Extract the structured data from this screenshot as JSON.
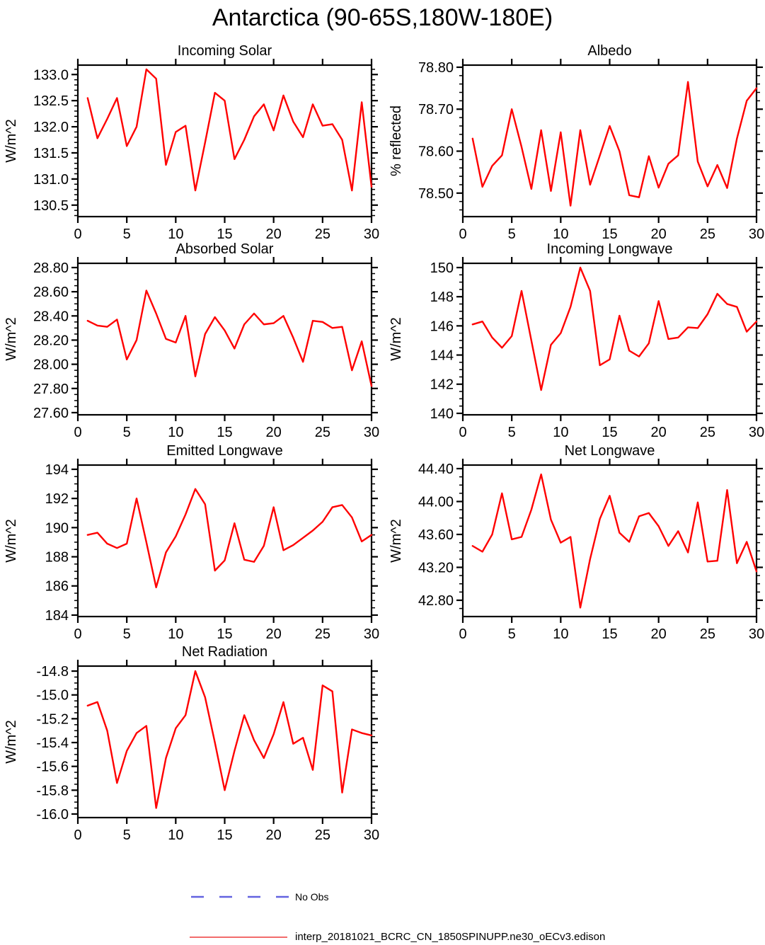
{
  "header": {
    "title": "Antarctica (90-65S,180W-180E)"
  },
  "legend": {
    "no_obs": {
      "label": "No Obs",
      "color": "#6262E0",
      "style": "dashed"
    },
    "series": {
      "label": "interp_20181021_BCRC_CN_1850SPINUPP.ne30_oECv3.edison",
      "color": "#EE3B3B",
      "style": "solid"
    }
  },
  "chart_data": [
    {
      "id": "incoming-solar",
      "type": "line",
      "title": "Incoming Solar",
      "ylabel": "W/m^2",
      "line_color": "#FF0000",
      "grid": false,
      "xlim": [
        0,
        30
      ],
      "xticks": [
        0,
        5,
        10,
        15,
        20,
        25,
        30
      ],
      "xtick_labels": [
        "0",
        "5",
        "10",
        "15",
        "20",
        "25",
        "30"
      ],
      "ylim": [
        130.28,
        133.18
      ],
      "ytick_values": [
        130.5,
        131.0,
        131.5,
        132.0,
        132.5,
        133.0
      ],
      "ytick_labels": [
        "130.5",
        "131.0",
        "131.5",
        "132.0",
        "132.5",
        "133.0"
      ],
      "y_minor_step": 0.1,
      "x": [
        1,
        2,
        3,
        4,
        5,
        6,
        7,
        8,
        9,
        10,
        11,
        12,
        13,
        14,
        15,
        16,
        17,
        18,
        19,
        20,
        21,
        22,
        23,
        24,
        25,
        26,
        27,
        28,
        29,
        30
      ],
      "values": [
        132.55,
        131.78,
        132.15,
        132.55,
        131.63,
        132.0,
        133.1,
        132.92,
        131.27,
        131.9,
        132.02,
        130.78,
        131.7,
        132.65,
        132.5,
        131.38,
        131.75,
        132.2,
        132.43,
        131.93,
        132.6,
        132.1,
        131.8,
        132.43,
        132.02,
        132.05,
        131.75,
        130.78,
        132.47,
        130.85
      ]
    },
    {
      "id": "albedo",
      "type": "line",
      "title": "Albedo",
      "ylabel": "% reflected",
      "line_color": "#FF0000",
      "grid": false,
      "xlim": [
        0,
        30
      ],
      "xticks": [
        0,
        5,
        10,
        15,
        20,
        25,
        30
      ],
      "xtick_labels": [
        "0",
        "5",
        "10",
        "15",
        "20",
        "25",
        "30"
      ],
      "ylim": [
        78.444,
        78.805
      ],
      "ytick_values": [
        78.5,
        78.6,
        78.7,
        78.8
      ],
      "ytick_labels": [
        "78.50",
        "78.60",
        "78.70",
        "78.80"
      ],
      "y_minor_step": 0.02,
      "x": [
        1,
        2,
        3,
        4,
        5,
        6,
        7,
        8,
        9,
        10,
        11,
        12,
        13,
        14,
        15,
        16,
        17,
        18,
        19,
        20,
        21,
        22,
        23,
        24,
        25,
        26,
        27,
        28,
        29,
        30
      ],
      "values": [
        78.63,
        78.515,
        78.565,
        78.59,
        78.7,
        78.61,
        78.51,
        78.65,
        78.505,
        78.645,
        78.47,
        78.65,
        78.52,
        78.59,
        78.66,
        78.6,
        78.495,
        78.49,
        78.588,
        78.513,
        78.57,
        78.59,
        78.765,
        78.575,
        78.516,
        78.567,
        78.512,
        78.63,
        78.72,
        78.75
      ]
    },
    {
      "id": "absorbed-solar",
      "type": "line",
      "title": "Absorbed Solar",
      "ylabel": "W/m^2",
      "line_color": "#FF0000",
      "grid": false,
      "xlim": [
        0,
        30
      ],
      "xticks": [
        0,
        5,
        10,
        15,
        20,
        25,
        30
      ],
      "xtick_labels": [
        "0",
        "5",
        "10",
        "15",
        "20",
        "25",
        "30"
      ],
      "ylim": [
        27.582,
        28.835
      ],
      "ytick_values": [
        27.6,
        27.8,
        28.0,
        28.2,
        28.4,
        28.6,
        28.8
      ],
      "ytick_labels": [
        "27.60",
        "27.80",
        "28.00",
        "28.20",
        "28.40",
        "28.60",
        "28.80"
      ],
      "y_minor_step": 0.05,
      "x": [
        1,
        2,
        3,
        4,
        5,
        6,
        7,
        8,
        9,
        10,
        11,
        12,
        13,
        14,
        15,
        16,
        17,
        18,
        19,
        20,
        21,
        22,
        23,
        24,
        25,
        26,
        27,
        28,
        29,
        30
      ],
      "values": [
        28.36,
        28.32,
        28.31,
        28.37,
        28.04,
        28.2,
        28.61,
        28.42,
        28.21,
        28.18,
        28.4,
        27.9,
        28.25,
        28.39,
        28.28,
        28.13,
        28.33,
        28.42,
        28.33,
        28.34,
        28.4,
        28.22,
        28.02,
        28.36,
        28.35,
        28.3,
        28.31,
        27.95,
        28.19,
        27.82
      ]
    },
    {
      "id": "incoming-longwave",
      "type": "line",
      "title": "Incoming Longwave",
      "ylabel": "W/m^2",
      "line_color": "#FF0000",
      "grid": false,
      "xlim": [
        0,
        30
      ],
      "xticks": [
        0,
        5,
        10,
        15,
        20,
        25,
        30
      ],
      "xtick_labels": [
        "0",
        "5",
        "10",
        "15",
        "20",
        "25",
        "30"
      ],
      "ylim": [
        139.9,
        150.29
      ],
      "ytick_values": [
        140,
        142,
        144,
        146,
        148,
        150
      ],
      "ytick_labels": [
        "140",
        "142",
        "144",
        "146",
        "148",
        "150"
      ],
      "y_minor_step": 0.5,
      "x": [
        1,
        2,
        3,
        4,
        5,
        6,
        7,
        8,
        9,
        10,
        11,
        12,
        13,
        14,
        15,
        16,
        17,
        18,
        19,
        20,
        21,
        22,
        23,
        24,
        25,
        26,
        27,
        28,
        29,
        30
      ],
      "values": [
        146.1,
        146.3,
        145.2,
        144.5,
        145.3,
        148.4,
        145.0,
        141.6,
        144.7,
        145.5,
        147.3,
        150.0,
        148.4,
        143.3,
        143.7,
        146.7,
        144.3,
        143.9,
        144.8,
        147.7,
        145.1,
        145.2,
        145.9,
        145.85,
        146.8,
        148.2,
        147.5,
        147.3,
        145.6,
        146.3
      ]
    },
    {
      "id": "emitted-longwave",
      "type": "line",
      "title": "Emitted Longwave",
      "ylabel": "W/m^2",
      "line_color": "#FF0000",
      "grid": false,
      "xlim": [
        0,
        30
      ],
      "xticks": [
        0,
        5,
        10,
        15,
        20,
        25,
        30
      ],
      "xtick_labels": [
        "0",
        "5",
        "10",
        "15",
        "20",
        "25",
        "30"
      ],
      "ylim": [
        183.9,
        194.29
      ],
      "ytick_values": [
        184,
        186,
        188,
        190,
        192,
        194
      ],
      "ytick_labels": [
        "184",
        "186",
        "188",
        "190",
        "192",
        "194"
      ],
      "y_minor_step": 0.5,
      "x": [
        1,
        2,
        3,
        4,
        5,
        6,
        7,
        8,
        9,
        10,
        11,
        12,
        13,
        14,
        15,
        16,
        17,
        18,
        19,
        20,
        21,
        22,
        23,
        24,
        25,
        26,
        27,
        28,
        29,
        30
      ],
      "values": [
        189.5,
        189.65,
        188.9,
        188.6,
        188.9,
        192.0,
        189.0,
        185.9,
        188.3,
        189.4,
        190.9,
        192.65,
        191.6,
        187.05,
        187.75,
        190.3,
        187.8,
        187.65,
        188.75,
        191.4,
        188.45,
        188.8,
        189.3,
        189.8,
        190.4,
        191.4,
        191.55,
        190.7,
        189.05,
        189.5
      ]
    },
    {
      "id": "net-longwave",
      "type": "line",
      "title": "Net Longwave",
      "ylabel": "W/m^2",
      "line_color": "#FF0000",
      "grid": false,
      "xlim": [
        0,
        30
      ],
      "xticks": [
        0,
        5,
        10,
        15,
        20,
        25,
        30
      ],
      "xtick_labels": [
        "0",
        "5",
        "10",
        "15",
        "20",
        "25",
        "30"
      ],
      "ylim": [
        42.602,
        44.443
      ],
      "ytick_values": [
        42.8,
        43.2,
        43.6,
        44.0,
        44.4
      ],
      "ytick_labels": [
        "42.80",
        "43.20",
        "43.60",
        "44.00",
        "44.40"
      ],
      "y_minor_step": 0.1,
      "x": [
        1,
        2,
        3,
        4,
        5,
        6,
        7,
        8,
        9,
        10,
        11,
        12,
        13,
        14,
        15,
        16,
        17,
        18,
        19,
        20,
        21,
        22,
        23,
        24,
        25,
        26,
        27,
        28,
        29,
        30
      ],
      "values": [
        43.46,
        43.39,
        43.6,
        44.1,
        43.54,
        43.57,
        43.9,
        44.33,
        43.78,
        43.5,
        43.57,
        42.71,
        43.3,
        43.79,
        44.07,
        43.62,
        43.51,
        43.82,
        43.86,
        43.7,
        43.46,
        43.64,
        43.38,
        43.99,
        43.27,
        43.28,
        44.14,
        43.25,
        43.51,
        43.15
      ]
    },
    {
      "id": "net-radiation",
      "type": "line",
      "title": "Net Radiation",
      "ylabel": "W/m^2",
      "line_color": "#FF0000",
      "grid": false,
      "xlim": [
        0,
        30
      ],
      "xticks": [
        0,
        5,
        10,
        15,
        20,
        25,
        30
      ],
      "xtick_labels": [
        "0",
        "5",
        "10",
        "15",
        "20",
        "25",
        "30"
      ],
      "ylim": [
        -16.03,
        -14.758
      ],
      "ytick_values": [
        -16.0,
        -15.8,
        -15.6,
        -15.4,
        -15.2,
        -15.0,
        -14.8
      ],
      "ytick_labels": [
        "-16.0",
        "-15.8",
        "-15.6",
        "-15.4",
        "-15.2",
        "-15.0",
        "-14.8"
      ],
      "y_minor_step": 0.05,
      "x": [
        1,
        2,
        3,
        4,
        5,
        6,
        7,
        8,
        9,
        10,
        11,
        12,
        13,
        14,
        15,
        16,
        17,
        18,
        19,
        20,
        21,
        22,
        23,
        24,
        25,
        26,
        27,
        28,
        29,
        30
      ],
      "values": [
        -15.09,
        -15.06,
        -15.3,
        -15.74,
        -15.47,
        -15.32,
        -15.26,
        -15.95,
        -15.53,
        -15.28,
        -15.17,
        -14.8,
        -15.02,
        -15.4,
        -15.8,
        -15.47,
        -15.17,
        -15.38,
        -15.53,
        -15.33,
        -15.06,
        -15.41,
        -15.36,
        -15.63,
        -14.92,
        -14.97,
        -15.82,
        -15.29,
        -15.32,
        -15.34
      ]
    }
  ]
}
